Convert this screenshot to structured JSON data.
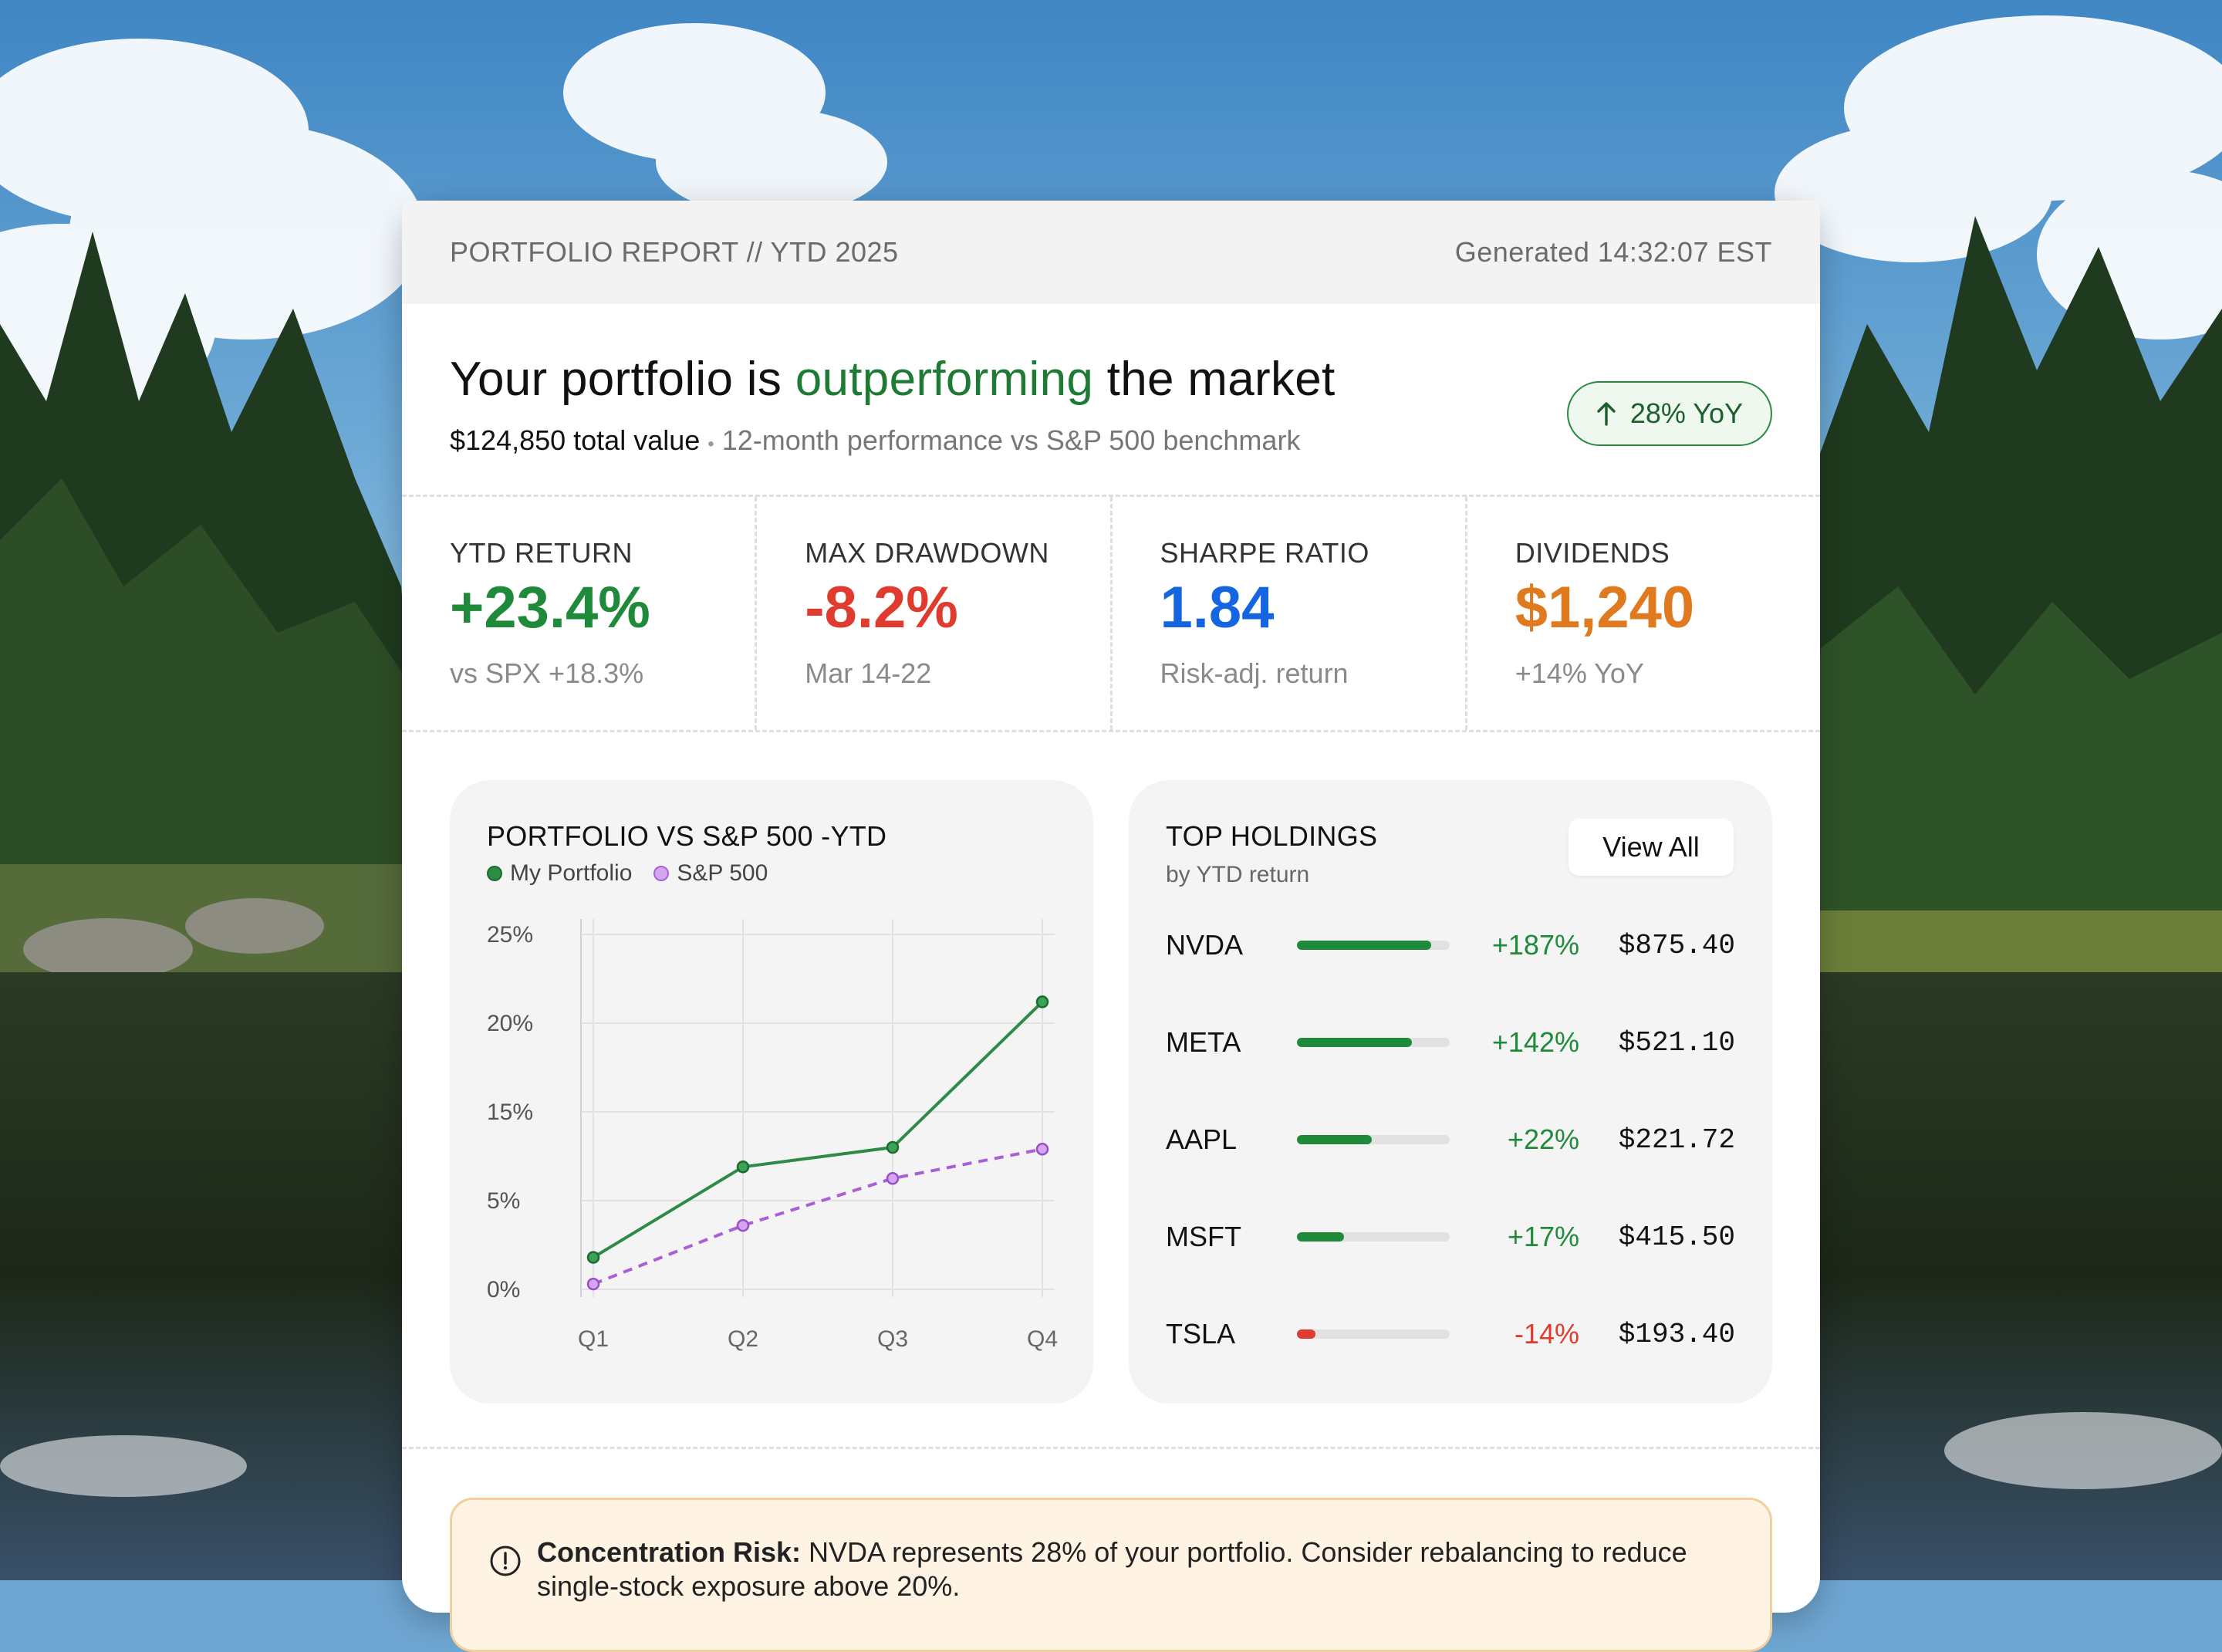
{
  "header": {
    "title": "PORTFOLIO REPORT // YTD 2025",
    "generated": "Generated 14:32:07 EST"
  },
  "hero": {
    "headline_pre": "Your portfolio is ",
    "headline_accent": "outperforming",
    "headline_post": " the market",
    "total_value": "$124,850 total value",
    "separator": "•",
    "subtitle": "12-month performance vs S&P 500 benchmark",
    "badge": "28% YoY",
    "badge_icon": "arrow-up-icon"
  },
  "stats": [
    {
      "label": "YTD RETURN",
      "value": "+23.4%",
      "note": "vs SPX +18.3%",
      "color": "#1e8a3a"
    },
    {
      "label": "MAX DRAWDOWN",
      "value": "-8.2%",
      "note": "Mar 14-22",
      "color": "#e03b2f"
    },
    {
      "label": "SHARPE RATIO",
      "value": "1.84",
      "note": "Risk-adj. return",
      "color": "#1565e0"
    },
    {
      "label": "DIVIDENDS",
      "value": "$1,240",
      "note": "+14% YoY",
      "color": "#e07a1f"
    }
  ],
  "chart_panel": {
    "title": "PORTFOLIO VS S&P 500 -YTD",
    "legend": [
      {
        "name": "My Portfolio",
        "color": "#2e8b46"
      },
      {
        "name": "S&P 500",
        "color": "#a95fd6"
      }
    ]
  },
  "chart_data": {
    "type": "line",
    "categories": [
      "Q1",
      "Q2",
      "Q3",
      "Q4"
    ],
    "y_ticks": [
      "0%",
      "5%",
      "15%",
      "20%",
      "25%"
    ],
    "series": [
      {
        "name": "My Portfolio",
        "values": [
          1.8,
          8.8,
          11.0,
          21.2
        ],
        "style": "solid",
        "color": "#2e8b46"
      },
      {
        "name": "S&P 500",
        "values": [
          0.3,
          3.6,
          7.5,
          10.8
        ],
        "style": "dashed",
        "color": "#a95fd6"
      }
    ],
    "grid": true
  },
  "holdings_panel": {
    "title": "TOP HOLDINGS",
    "subtitle": "by YTD return",
    "view_all": "View All",
    "items": [
      {
        "ticker": "NVDA",
        "change": "+187%",
        "price": "$875.40",
        "bar_fraction": 0.88,
        "color": "#1e8a3a"
      },
      {
        "ticker": "META",
        "change": "+142%",
        "price": "$521.10",
        "bar_fraction": 0.75,
        "color": "#1e8a3a"
      },
      {
        "ticker": "AAPL",
        "change": "+22%",
        "price": "$221.72",
        "bar_fraction": 0.49,
        "color": "#1e8a3a"
      },
      {
        "ticker": "MSFT",
        "change": "+17%",
        "price": "$415.50",
        "bar_fraction": 0.31,
        "color": "#1e8a3a"
      },
      {
        "ticker": "TSLA",
        "change": "-14%",
        "price": "$193.40",
        "bar_fraction": 0.12,
        "color": "#e03b2f"
      }
    ]
  },
  "alert": {
    "title": "Concentration Risk:",
    "text": " NVDA represents 28% of your portfolio. Consider rebalancing to reduce single-stock exposure above 20%.",
    "icon": "exclamation-circle-icon"
  }
}
